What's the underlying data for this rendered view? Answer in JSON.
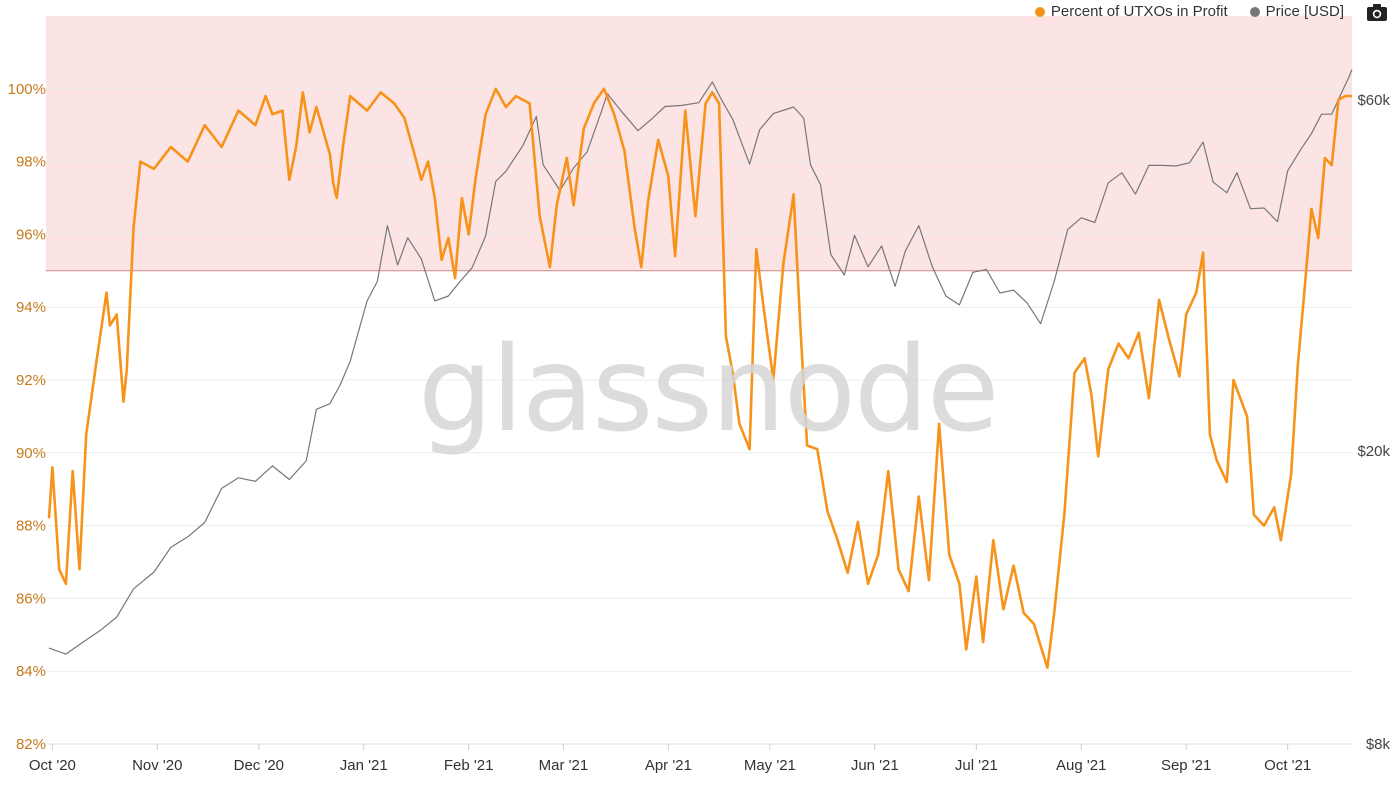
{
  "legend": {
    "series1": "Percent of UTXOs in Profit",
    "series2": "Price [USD]"
  },
  "watermark": "glassnode",
  "colors": {
    "profit": "#f7931a",
    "price": "#777777",
    "band": "#fde4e4",
    "threshold": "#c98a8a",
    "grid": "#ececec",
    "left_tick": "#c47a1e",
    "right_tick": "#444444"
  },
  "icons": {
    "camera": "camera-icon"
  },
  "chart_data": {
    "type": "line",
    "title": "",
    "x_ticks": [
      "Oct '20",
      "Nov '20",
      "Dec '20",
      "Jan '21",
      "Feb '21",
      "Mar '21",
      "Apr '21",
      "May '21",
      "Jun '21",
      "Jul '21",
      "Aug '21",
      "Sep '21",
      "Oct '21"
    ],
    "x_range": [
      "2020-09-30",
      "2021-10-20"
    ],
    "y_left": {
      "ticks": [
        "82%",
        "84%",
        "86%",
        "88%",
        "90%",
        "92%",
        "94%",
        "96%",
        "98%",
        "100%"
      ],
      "range": [
        82,
        102
      ]
    },
    "y_right": {
      "ticks": [
        "$8k",
        "$20k",
        "$60k"
      ],
      "values": [
        8000,
        20000,
        60000
      ],
      "scale": "log"
    },
    "highlight_band": {
      "from": 95,
      "to": 102
    },
    "series": [
      {
        "name": "Percent of UTXOs in Profit",
        "axis": "left",
        "points": [
          [
            "2020-09-30",
            88.2
          ],
          [
            "2020-10-01",
            89.6
          ],
          [
            "2020-10-03",
            86.8
          ],
          [
            "2020-10-05",
            86.4
          ],
          [
            "2020-10-07",
            89.5
          ],
          [
            "2020-10-09",
            86.8
          ],
          [
            "2020-10-11",
            90.5
          ],
          [
            "2020-10-14",
            92.5
          ],
          [
            "2020-10-17",
            94.4
          ],
          [
            "2020-10-18",
            93.5
          ],
          [
            "2020-10-20",
            93.8
          ],
          [
            "2020-10-22",
            91.4
          ],
          [
            "2020-10-23",
            92.3
          ],
          [
            "2020-10-25",
            96.2
          ],
          [
            "2020-10-27",
            98.0
          ],
          [
            "2020-10-31",
            97.8
          ],
          [
            "2020-11-05",
            98.4
          ],
          [
            "2020-11-10",
            98.0
          ],
          [
            "2020-11-15",
            99.0
          ],
          [
            "2020-11-20",
            98.4
          ],
          [
            "2020-11-25",
            99.4
          ],
          [
            "2020-11-30",
            99.0
          ],
          [
            "2020-12-03",
            99.8
          ],
          [
            "2020-12-05",
            99.3
          ],
          [
            "2020-12-08",
            99.4
          ],
          [
            "2020-12-10",
            97.5
          ],
          [
            "2020-12-12",
            98.4
          ],
          [
            "2020-12-14",
            99.9
          ],
          [
            "2020-12-16",
            98.8
          ],
          [
            "2020-12-18",
            99.5
          ],
          [
            "2020-12-22",
            98.2
          ],
          [
            "2020-12-23",
            97.4
          ],
          [
            "2020-12-24",
            97.0
          ],
          [
            "2020-12-26",
            98.5
          ],
          [
            "2020-12-28",
            99.8
          ],
          [
            "2021-01-02",
            99.4
          ],
          [
            "2021-01-06",
            99.9
          ],
          [
            "2021-01-10",
            99.6
          ],
          [
            "2021-01-13",
            99.2
          ],
          [
            "2021-01-16",
            98.2
          ],
          [
            "2021-01-18",
            97.5
          ],
          [
            "2021-01-20",
            98.0
          ],
          [
            "2021-01-22",
            97.0
          ],
          [
            "2021-01-24",
            95.3
          ],
          [
            "2021-01-26",
            95.9
          ],
          [
            "2021-01-28",
            94.8
          ],
          [
            "2021-01-30",
            97.0
          ],
          [
            "2021-02-01",
            96.0
          ],
          [
            "2021-02-03",
            97.5
          ],
          [
            "2021-02-06",
            99.3
          ],
          [
            "2021-02-09",
            100.0
          ],
          [
            "2021-02-12",
            99.5
          ],
          [
            "2021-02-15",
            99.8
          ],
          [
            "2021-02-19",
            99.6
          ],
          [
            "2021-02-22",
            96.5
          ],
          [
            "2021-02-25",
            95.1
          ],
          [
            "2021-02-27",
            96.8
          ],
          [
            "2021-03-02",
            98.1
          ],
          [
            "2021-03-04",
            96.8
          ],
          [
            "2021-03-07",
            98.9
          ],
          [
            "2021-03-10",
            99.6
          ],
          [
            "2021-03-13",
            100.0
          ],
          [
            "2021-03-16",
            99.3
          ],
          [
            "2021-03-19",
            98.3
          ],
          [
            "2021-03-22",
            96.2
          ],
          [
            "2021-03-24",
            95.1
          ],
          [
            "2021-03-26",
            96.9
          ],
          [
            "2021-03-29",
            98.6
          ],
          [
            "2021-04-01",
            97.6
          ],
          [
            "2021-04-03",
            95.4
          ],
          [
            "2021-04-06",
            99.4
          ],
          [
            "2021-04-09",
            96.5
          ],
          [
            "2021-04-12",
            99.6
          ],
          [
            "2021-04-14",
            99.9
          ],
          [
            "2021-04-16",
            99.6
          ],
          [
            "2021-04-18",
            93.2
          ],
          [
            "2021-04-20",
            92.2
          ],
          [
            "2021-04-22",
            90.8
          ],
          [
            "2021-04-25",
            90.1
          ],
          [
            "2021-04-27",
            95.6
          ],
          [
            "2021-04-29",
            94.1
          ],
          [
            "2021-05-02",
            92.0
          ],
          [
            "2021-05-05",
            95.2
          ],
          [
            "2021-05-08",
            97.1
          ],
          [
            "2021-05-10",
            93.5
          ],
          [
            "2021-05-12",
            90.2
          ],
          [
            "2021-05-15",
            90.1
          ],
          [
            "2021-05-18",
            88.4
          ],
          [
            "2021-05-21",
            87.6
          ],
          [
            "2021-05-24",
            86.7
          ],
          [
            "2021-05-27",
            88.1
          ],
          [
            "2021-05-30",
            86.4
          ],
          [
            "2021-06-02",
            87.2
          ],
          [
            "2021-06-05",
            89.5
          ],
          [
            "2021-06-08",
            86.8
          ],
          [
            "2021-06-11",
            86.2
          ],
          [
            "2021-06-14",
            88.8
          ],
          [
            "2021-06-17",
            86.5
          ],
          [
            "2021-06-20",
            90.8
          ],
          [
            "2021-06-23",
            87.2
          ],
          [
            "2021-06-26",
            86.4
          ],
          [
            "2021-06-28",
            84.6
          ],
          [
            "2021-07-01",
            86.6
          ],
          [
            "2021-07-03",
            84.8
          ],
          [
            "2021-07-06",
            87.6
          ],
          [
            "2021-07-09",
            85.7
          ],
          [
            "2021-07-12",
            86.9
          ],
          [
            "2021-07-15",
            85.6
          ],
          [
            "2021-07-18",
            85.3
          ],
          [
            "2021-07-20",
            84.7
          ],
          [
            "2021-07-22",
            84.1
          ],
          [
            "2021-07-24",
            85.6
          ],
          [
            "2021-07-27",
            88.3
          ],
          [
            "2021-07-30",
            92.2
          ],
          [
            "2021-08-02",
            92.6
          ],
          [
            "2021-08-04",
            91.6
          ],
          [
            "2021-08-06",
            89.9
          ],
          [
            "2021-08-09",
            92.3
          ],
          [
            "2021-08-12",
            93.0
          ],
          [
            "2021-08-15",
            92.6
          ],
          [
            "2021-08-18",
            93.3
          ],
          [
            "2021-08-21",
            91.5
          ],
          [
            "2021-08-24",
            94.2
          ],
          [
            "2021-08-27",
            93.1
          ],
          [
            "2021-08-30",
            92.1
          ],
          [
            "2021-09-01",
            93.8
          ],
          [
            "2021-09-04",
            94.4
          ],
          [
            "2021-09-06",
            95.5
          ],
          [
            "2021-09-08",
            90.5
          ],
          [
            "2021-09-10",
            89.8
          ],
          [
            "2021-09-13",
            89.2
          ],
          [
            "2021-09-15",
            92.0
          ],
          [
            "2021-09-17",
            91.5
          ],
          [
            "2021-09-19",
            91.0
          ],
          [
            "2021-09-21",
            88.3
          ],
          [
            "2021-09-24",
            88.0
          ],
          [
            "2021-09-27",
            88.5
          ],
          [
            "2021-09-29",
            87.6
          ],
          [
            "2021-10-02",
            89.4
          ],
          [
            "2021-10-04",
            92.4
          ],
          [
            "2021-10-06",
            94.5
          ],
          [
            "2021-10-08",
            96.7
          ],
          [
            "2021-10-10",
            95.9
          ],
          [
            "2021-10-12",
            98.1
          ],
          [
            "2021-10-14",
            97.9
          ],
          [
            "2021-10-16",
            99.7
          ],
          [
            "2021-10-18",
            99.8
          ],
          [
            "2021-10-20",
            99.8
          ]
        ]
      },
      {
        "name": "Price [USD]",
        "axis": "right",
        "points": [
          [
            "2020-09-30",
            10800
          ],
          [
            "2020-10-05",
            10600
          ],
          [
            "2020-10-10",
            11000
          ],
          [
            "2020-10-15",
            11400
          ],
          [
            "2020-10-20",
            11900
          ],
          [
            "2020-10-25",
            13000
          ],
          [
            "2020-10-31",
            13700
          ],
          [
            "2020-11-05",
            14800
          ],
          [
            "2020-11-10",
            15300
          ],
          [
            "2020-11-15",
            16000
          ],
          [
            "2020-11-20",
            17800
          ],
          [
            "2020-11-25",
            18400
          ],
          [
            "2020-11-30",
            18200
          ],
          [
            "2020-12-05",
            19100
          ],
          [
            "2020-12-10",
            18300
          ],
          [
            "2020-12-15",
            19400
          ],
          [
            "2020-12-18",
            22800
          ],
          [
            "2020-12-22",
            23200
          ],
          [
            "2020-12-25",
            24600
          ],
          [
            "2020-12-28",
            26500
          ],
          [
            "2021-01-02",
            32000
          ],
          [
            "2021-01-05",
            34000
          ],
          [
            "2021-01-08",
            40500
          ],
          [
            "2021-01-11",
            35800
          ],
          [
            "2021-01-14",
            39000
          ],
          [
            "2021-01-18",
            36500
          ],
          [
            "2021-01-22",
            32000
          ],
          [
            "2021-01-26",
            32500
          ],
          [
            "2021-01-29",
            33800
          ],
          [
            "2021-02-02",
            35500
          ],
          [
            "2021-02-06",
            39200
          ],
          [
            "2021-02-09",
            46500
          ],
          [
            "2021-02-12",
            48000
          ],
          [
            "2021-02-17",
            52000
          ],
          [
            "2021-02-21",
            57000
          ],
          [
            "2021-02-23",
            49000
          ],
          [
            "2021-02-28",
            45200
          ],
          [
            "2021-03-04",
            48500
          ],
          [
            "2021-03-08",
            51000
          ],
          [
            "2021-03-12",
            57500
          ],
          [
            "2021-03-14",
            61200
          ],
          [
            "2021-03-18",
            58000
          ],
          [
            "2021-03-23",
            54500
          ],
          [
            "2021-03-27",
            56500
          ],
          [
            "2021-03-31",
            58800
          ],
          [
            "2021-04-05",
            59000
          ],
          [
            "2021-04-10",
            59500
          ],
          [
            "2021-04-14",
            63500
          ],
          [
            "2021-04-17",
            59700
          ],
          [
            "2021-04-20",
            56500
          ],
          [
            "2021-04-25",
            49100
          ],
          [
            "2021-04-28",
            54700
          ],
          [
            "2021-05-02",
            57500
          ],
          [
            "2021-05-08",
            58700
          ],
          [
            "2021-05-11",
            56700
          ],
          [
            "2021-05-13",
            49000
          ],
          [
            "2021-05-16",
            46000
          ],
          [
            "2021-05-19",
            37000
          ],
          [
            "2021-05-23",
            34700
          ],
          [
            "2021-05-26",
            39300
          ],
          [
            "2021-05-30",
            35600
          ],
          [
            "2021-06-03",
            38000
          ],
          [
            "2021-06-07",
            33500
          ],
          [
            "2021-06-10",
            37400
          ],
          [
            "2021-06-14",
            40500
          ],
          [
            "2021-06-18",
            35600
          ],
          [
            "2021-06-22",
            32500
          ],
          [
            "2021-06-26",
            31600
          ],
          [
            "2021-06-30",
            35000
          ],
          [
            "2021-07-04",
            35300
          ],
          [
            "2021-07-08",
            32800
          ],
          [
            "2021-07-12",
            33100
          ],
          [
            "2021-07-16",
            31800
          ],
          [
            "2021-07-20",
            29800
          ],
          [
            "2021-07-24",
            34000
          ],
          [
            "2021-07-28",
            40000
          ],
          [
            "2021-08-01",
            41500
          ],
          [
            "2021-08-05",
            40900
          ],
          [
            "2021-08-09",
            46300
          ],
          [
            "2021-08-13",
            47800
          ],
          [
            "2021-08-17",
            44700
          ],
          [
            "2021-08-21",
            48900
          ],
          [
            "2021-08-25",
            48900
          ],
          [
            "2021-08-29",
            48800
          ],
          [
            "2021-09-02",
            49300
          ],
          [
            "2021-09-06",
            52600
          ],
          [
            "2021-09-09",
            46400
          ],
          [
            "2021-09-13",
            44900
          ],
          [
            "2021-09-16",
            47800
          ],
          [
            "2021-09-20",
            42700
          ],
          [
            "2021-09-24",
            42800
          ],
          [
            "2021-09-28",
            41000
          ],
          [
            "2021-10-01",
            48100
          ],
          [
            "2021-10-05",
            51500
          ],
          [
            "2021-10-08",
            54000
          ],
          [
            "2021-10-11",
            57400
          ],
          [
            "2021-10-14",
            57400
          ],
          [
            "2021-10-17",
            61500
          ],
          [
            "2021-10-19",
            64300
          ],
          [
            "2021-10-20",
            66000
          ]
        ]
      }
    ]
  }
}
